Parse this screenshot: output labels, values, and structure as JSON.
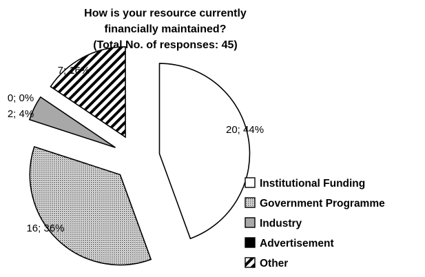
{
  "chart_data": {
    "type": "pie",
    "title_lines": [
      "How is your resource currently",
      "financially maintained?",
      "(Total No. of responses: 45)"
    ],
    "categories": [
      "Institutional Funding",
      "Government Programme",
      "Industry",
      "Advertisement",
      "Other"
    ],
    "values": [
      20,
      16,
      2,
      0,
      7
    ],
    "percentages": [
      44,
      36,
      4,
      0,
      16
    ],
    "data_labels": [
      "20; 44%",
      "16; 36%",
      "2; 4%",
      "0; 0%",
      "7; 16%"
    ],
    "fills": [
      "white",
      "dots",
      "grey",
      "black",
      "diagonal-stripes"
    ],
    "colors": {
      "grey": "#a8a8a8",
      "black": "#000000",
      "white": "#ffffff"
    },
    "exploded": true,
    "legend_position": "bottom-right"
  }
}
